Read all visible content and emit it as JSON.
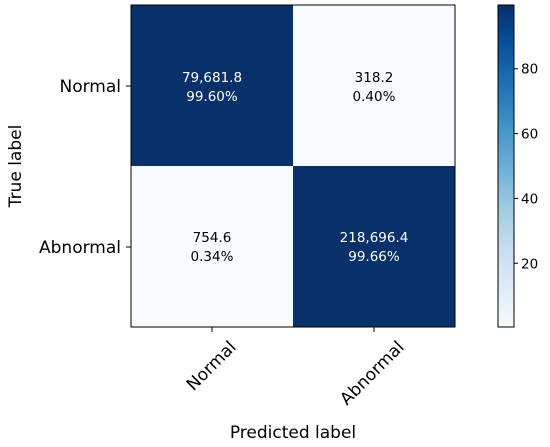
{
  "chart_data": {
    "type": "heatmap",
    "xlabel": "Predicted label",
    "ylabel": "True label",
    "x_categories": [
      "Normal",
      "Abnormal"
    ],
    "y_categories": [
      "Normal",
      "Abnormal"
    ],
    "cells": [
      [
        {
          "count": "79,681.8",
          "percent": "99.60%",
          "value": 99.6
        },
        {
          "count": "318.2",
          "percent": "0.40%",
          "value": 0.4
        }
      ],
      [
        {
          "count": "754.6",
          "percent": "0.34%",
          "value": 0.34
        },
        {
          "count": "218,696.4",
          "percent": "99.66%",
          "value": 99.66
        }
      ]
    ],
    "colorbar": {
      "min": 0.34,
      "max": 99.66,
      "ticks": [
        20,
        40,
        60,
        80
      ],
      "colormap": "Blues",
      "color_low": "#f7fbff",
      "color_high": "#08306b"
    },
    "grid": false
  }
}
